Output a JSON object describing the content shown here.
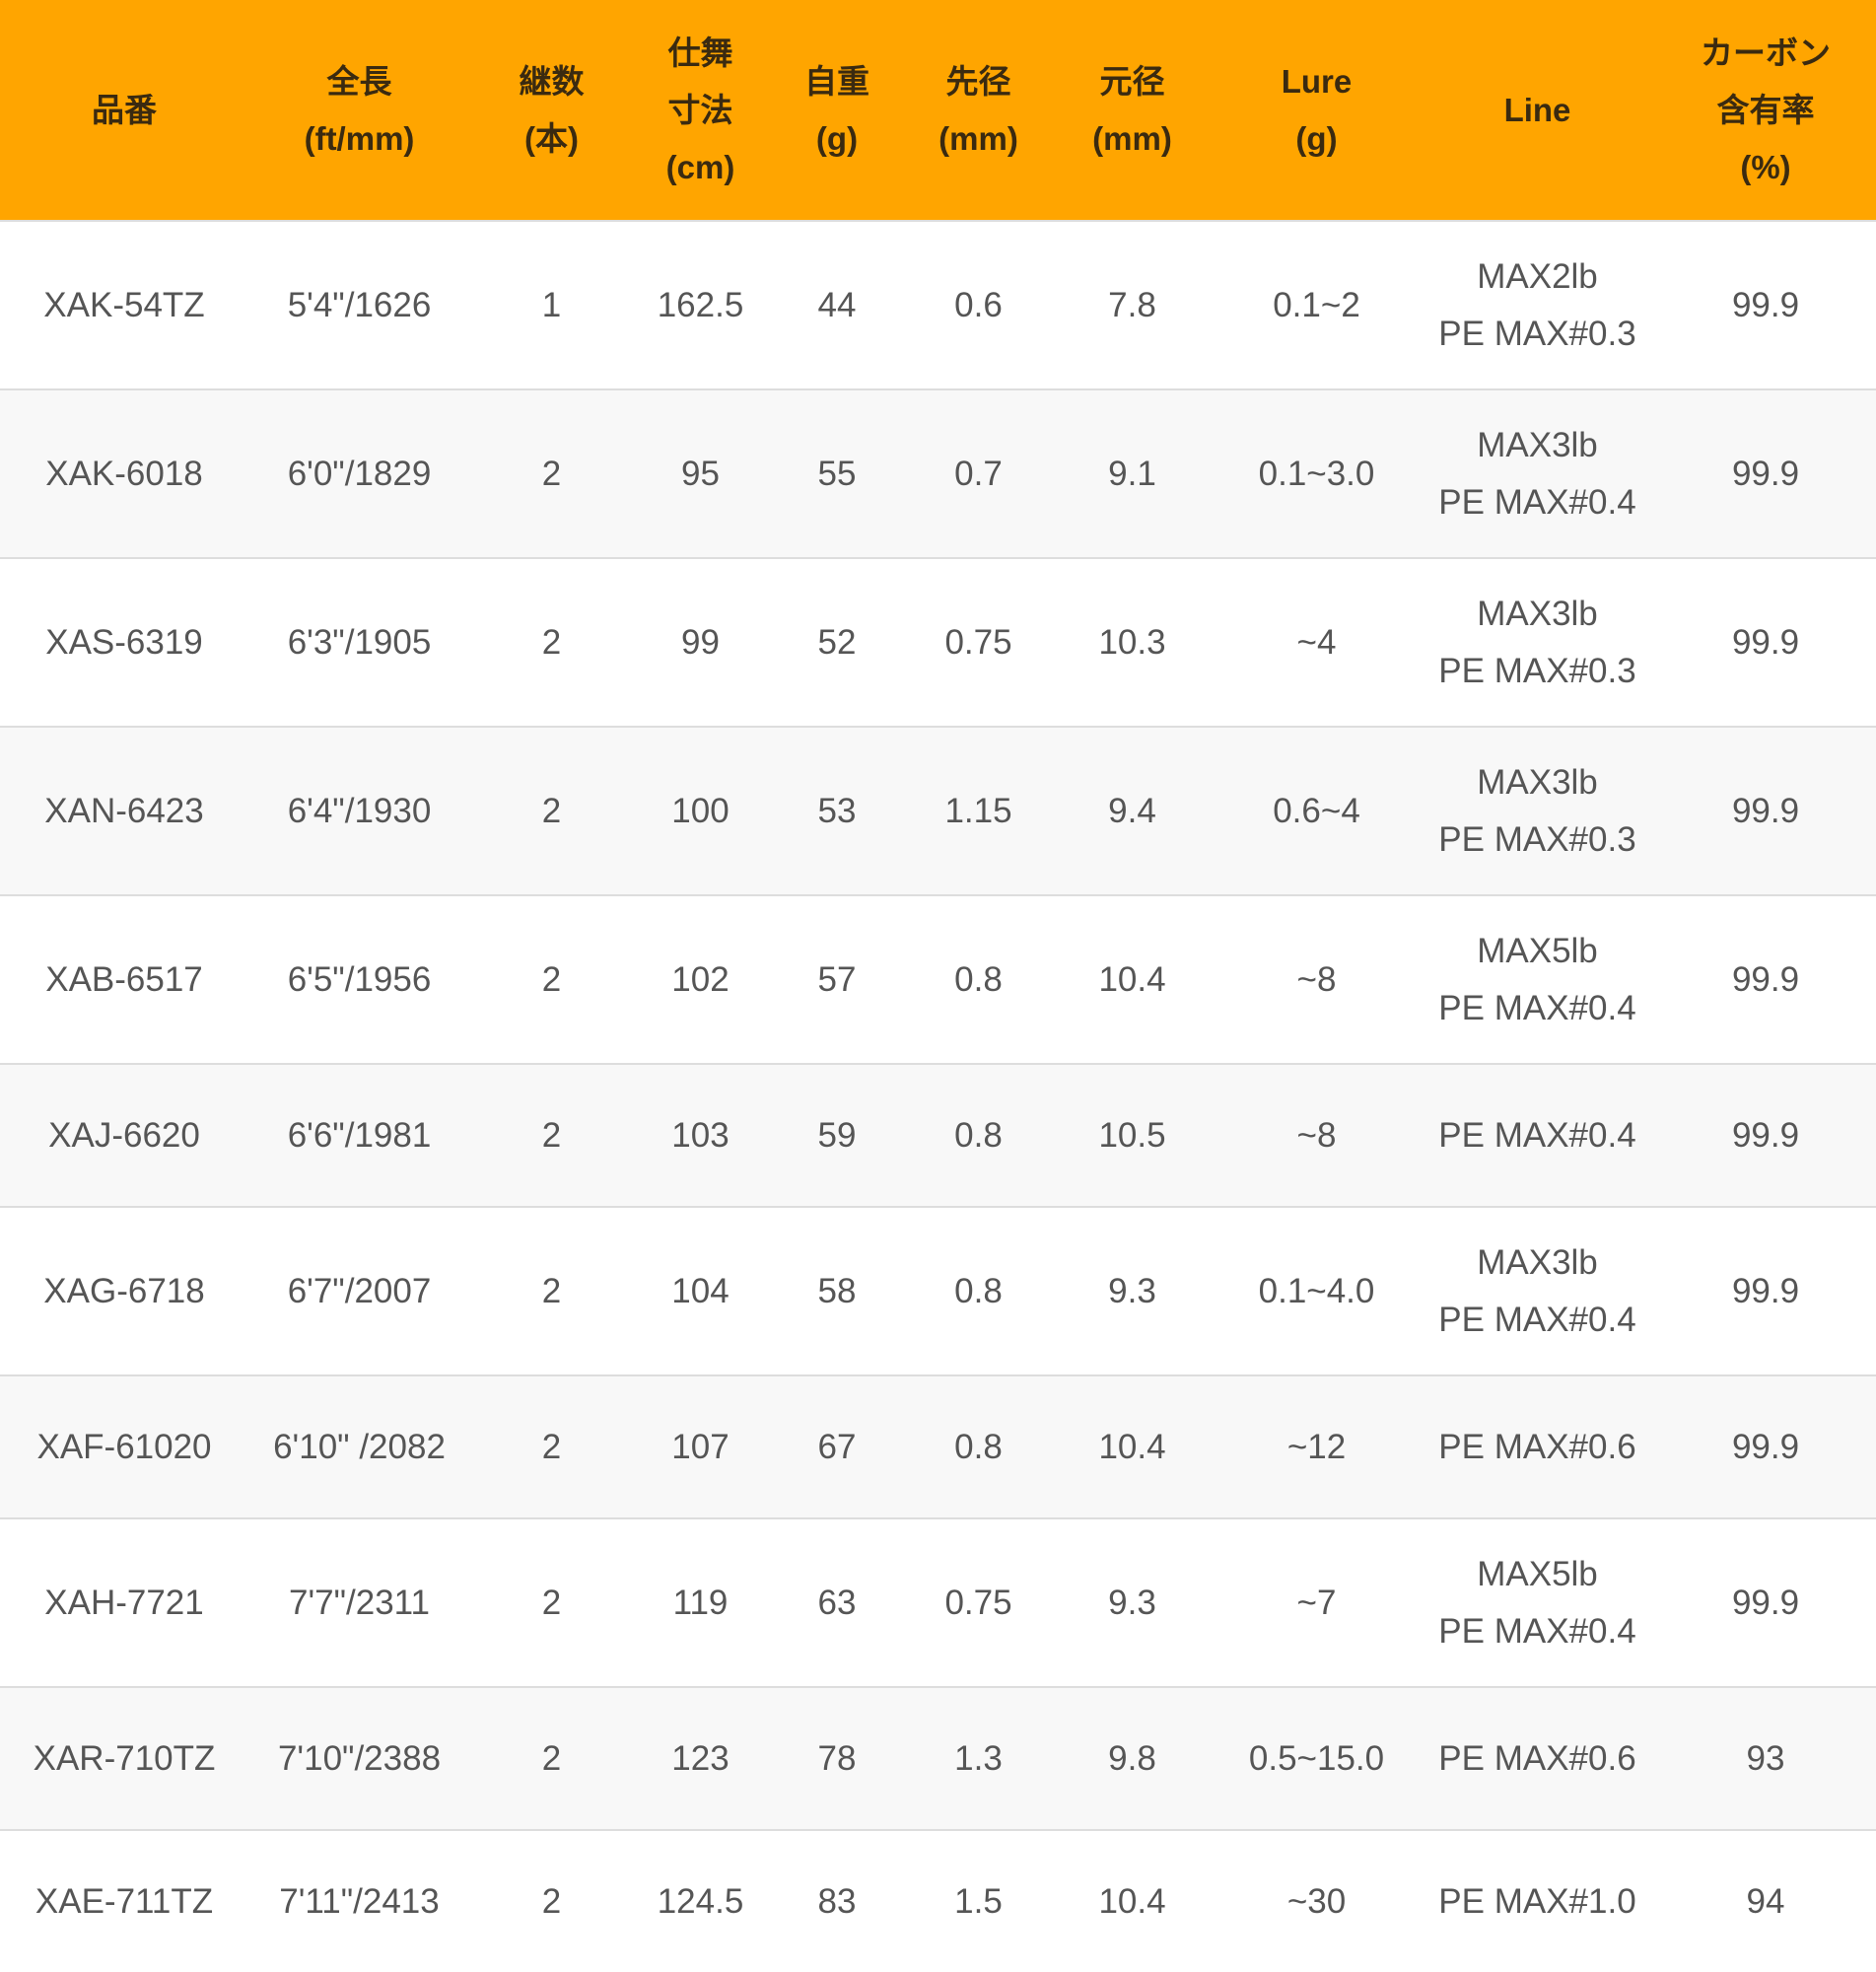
{
  "colors": {
    "header_bg": "#FFA500",
    "row_alt_bg": "#f8f8f8",
    "border": "#dddddd"
  },
  "headers": [
    [
      "品番"
    ],
    [
      "全長",
      "(ft/mm)"
    ],
    [
      "継数",
      "(本)"
    ],
    [
      "仕舞",
      "寸法",
      "(cm)"
    ],
    [
      "自重",
      "(g)"
    ],
    [
      "先径",
      "(mm)"
    ],
    [
      "元径",
      "(mm)"
    ],
    [
      "Lure",
      "(g)"
    ],
    [
      "Line"
    ],
    [
      "カーボン",
      "含有率",
      "(%)"
    ]
  ],
  "rows": [
    [
      "XAK-54TZ",
      "5'4\"/1626",
      "1",
      "162.5",
      "44",
      "0.6",
      "7.8",
      "0.1~2",
      [
        "MAX2lb",
        "PE MAX#0.3"
      ],
      "99.9"
    ],
    [
      "XAK-6018",
      "6'0\"/1829",
      "2",
      "95",
      "55",
      "0.7",
      "9.1",
      "0.1~3.0",
      [
        "MAX3lb",
        "PE MAX#0.4"
      ],
      "99.9"
    ],
    [
      "XAS-6319",
      "6'3\"/1905",
      "2",
      "99",
      "52",
      "0.75",
      "10.3",
      "~4",
      [
        "MAX3lb",
        "PE MAX#0.3"
      ],
      "99.9"
    ],
    [
      "XAN-6423",
      "6'4\"/1930",
      "2",
      "100",
      "53",
      "1.15",
      "9.4",
      "0.6~4",
      [
        "MAX3lb",
        "PE MAX#0.3"
      ],
      "99.9"
    ],
    [
      "XAB-6517",
      "6'5\"/1956",
      "2",
      "102",
      "57",
      "0.8",
      "10.4",
      "~8",
      [
        "MAX5lb",
        "PE MAX#0.4"
      ],
      "99.9"
    ],
    [
      "XAJ-6620",
      "6'6\"/1981",
      "2",
      "103",
      "59",
      "0.8",
      "10.5",
      "~8",
      [
        "PE MAX#0.4"
      ],
      "99.9"
    ],
    [
      "XAG-6718",
      "6'7\"/2007",
      "2",
      "104",
      "58",
      "0.8",
      "9.3",
      "0.1~4.0",
      [
        "MAX3lb",
        "PE MAX#0.4"
      ],
      "99.9"
    ],
    [
      "XAF-61020",
      "6'10\" /2082",
      "2",
      "107",
      "67",
      "0.8",
      "10.4",
      "~12",
      [
        "PE MAX#0.6"
      ],
      "99.9"
    ],
    [
      "XAH-7721",
      "7'7\"/2311",
      "2",
      "119",
      "63",
      "0.75",
      "9.3",
      "~7",
      [
        "MAX5lb",
        "PE MAX#0.4"
      ],
      "99.9"
    ],
    [
      "XAR-710TZ",
      "7'10\"/2388",
      "2",
      "123",
      "78",
      "1.3",
      "9.8",
      "0.5~15.0",
      [
        "PE MAX#0.6"
      ],
      "93"
    ],
    [
      "XAE-711TZ",
      "7'11\"/2413",
      "2",
      "124.5",
      "83",
      "1.5",
      "10.4",
      "~30",
      [
        "PE MAX#1.0"
      ],
      "94"
    ]
  ]
}
